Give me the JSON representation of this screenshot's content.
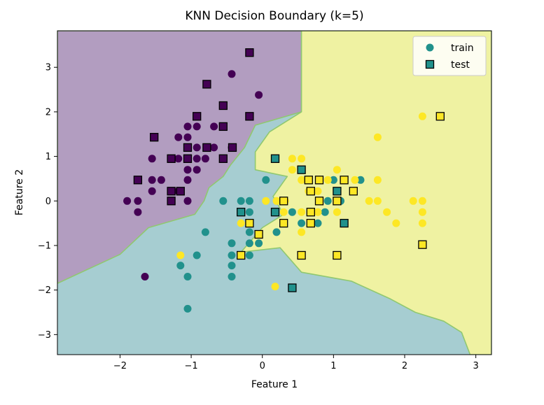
{
  "chart_data": {
    "type": "scatter",
    "title": "KNN Decision Boundary (k=5)",
    "xlabel": "Feature 1",
    "ylabel": "Feature 2",
    "xlim": [
      -2.88,
      3.22
    ],
    "ylim": [
      -3.45,
      3.82
    ],
    "xticks": [
      -2,
      -1,
      0,
      1,
      2,
      3
    ],
    "yticks": [
      -3,
      -2,
      -1,
      0,
      1,
      2,
      3
    ],
    "legend": {
      "placement": "top-right",
      "entries": [
        "train",
        "test"
      ]
    },
    "class_colors": [
      "#440154",
      "#21918c",
      "#fde725"
    ],
    "region_colors": [
      "#b29dc0",
      "#a6cdd1",
      "#eff2a2"
    ],
    "boundary_color": "#90c870",
    "regions": [
      {
        "class": 0,
        "polygon": [
          [
            -2.88,
            3.82
          ],
          [
            0.55,
            3.82
          ],
          [
            0.55,
            2.0
          ],
          [
            -0.1,
            1.7
          ],
          [
            -0.25,
            1.2
          ],
          [
            -0.45,
            0.8
          ],
          [
            -0.55,
            0.55
          ],
          [
            -0.75,
            0.3
          ],
          [
            -0.82,
            0.0
          ],
          [
            -0.95,
            -0.3
          ],
          [
            -1.6,
            -0.6
          ],
          [
            -2.0,
            -1.2
          ],
          [
            -2.88,
            -1.85
          ]
        ]
      },
      {
        "class": 2,
        "polygon": [
          [
            0.55,
            3.82
          ],
          [
            3.22,
            3.82
          ],
          [
            3.22,
            -3.45
          ],
          [
            2.92,
            -3.45
          ],
          [
            2.8,
            -2.95
          ],
          [
            2.55,
            -2.7
          ],
          [
            2.15,
            -2.5
          ],
          [
            1.8,
            -2.2
          ],
          [
            1.25,
            -1.8
          ],
          [
            0.55,
            -1.6
          ],
          [
            0.25,
            -1.05
          ],
          [
            -0.3,
            -1.15
          ],
          [
            0.0,
            -0.6
          ],
          [
            0.3,
            -0.3
          ],
          [
            0.15,
            0.1
          ],
          [
            0.35,
            0.55
          ],
          [
            -0.1,
            0.7
          ],
          [
            -0.1,
            1.1
          ],
          [
            0.1,
            1.55
          ],
          [
            0.55,
            2.0
          ]
        ]
      }
    ],
    "train": [
      {
        "x": -1.9,
        "y": 0.0,
        "c": 0
      },
      {
        "x": -1.75,
        "y": 0.0,
        "c": 0
      },
      {
        "x": -1.75,
        "y": -0.25,
        "c": 0
      },
      {
        "x": -1.55,
        "y": 0.47,
        "c": 0
      },
      {
        "x": -1.55,
        "y": 0.95,
        "c": 0
      },
      {
        "x": -1.55,
        "y": 0.22,
        "c": 0
      },
      {
        "x": -1.42,
        "y": 0.47,
        "c": 0
      },
      {
        "x": -1.28,
        "y": 0.0,
        "c": 0
      },
      {
        "x": -1.18,
        "y": 0.22,
        "c": 0
      },
      {
        "x": -1.18,
        "y": 0.95,
        "c": 0
      },
      {
        "x": -1.18,
        "y": 1.43,
        "c": 0
      },
      {
        "x": -1.05,
        "y": 0.0,
        "c": 0
      },
      {
        "x": -1.05,
        "y": 0.47,
        "c": 0
      },
      {
        "x": -1.05,
        "y": 0.7,
        "c": 0
      },
      {
        "x": -1.05,
        "y": 1.2,
        "c": 0
      },
      {
        "x": -1.05,
        "y": 1.43,
        "c": 0
      },
      {
        "x": -1.05,
        "y": 1.67,
        "c": 0
      },
      {
        "x": -0.92,
        "y": 0.7,
        "c": 0
      },
      {
        "x": -0.92,
        "y": 0.95,
        "c": 0
      },
      {
        "x": -0.92,
        "y": 1.2,
        "c": 0
      },
      {
        "x": -0.92,
        "y": 1.67,
        "c": 0
      },
      {
        "x": -0.92,
        "y": 1.9,
        "c": 0
      },
      {
        "x": -0.8,
        "y": 0.95,
        "c": 0
      },
      {
        "x": -0.68,
        "y": 1.2,
        "c": 0
      },
      {
        "x": -0.68,
        "y": 1.67,
        "c": 0
      },
      {
        "x": -0.55,
        "y": 0.95,
        "c": 0
      },
      {
        "x": -0.55,
        "y": 2.14,
        "c": 0
      },
      {
        "x": -0.43,
        "y": 1.2,
        "c": 0
      },
      {
        "x": -0.43,
        "y": 2.85,
        "c": 0
      },
      {
        "x": -0.05,
        "y": 2.38,
        "c": 0
      },
      {
        "x": -1.65,
        "y": -1.7,
        "c": 0
      },
      {
        "x": -1.15,
        "y": -1.45,
        "c": 1
      },
      {
        "x": -1.05,
        "y": -1.7,
        "c": 1
      },
      {
        "x": -1.05,
        "y": -2.42,
        "c": 1
      },
      {
        "x": -0.92,
        "y": -1.22,
        "c": 1
      },
      {
        "x": -0.8,
        "y": -0.7,
        "c": 1
      },
      {
        "x": -0.55,
        "y": 0.0,
        "c": 1
      },
      {
        "x": -0.43,
        "y": -0.95,
        "c": 1
      },
      {
        "x": -0.43,
        "y": -1.22,
        "c": 1
      },
      {
        "x": -0.43,
        "y": -1.45,
        "c": 1
      },
      {
        "x": -0.43,
        "y": -1.7,
        "c": 1
      },
      {
        "x": -0.3,
        "y": 0.0,
        "c": 1
      },
      {
        "x": -0.3,
        "y": -0.25,
        "c": 1
      },
      {
        "x": -0.18,
        "y": 0.0,
        "c": 1
      },
      {
        "x": -0.18,
        "y": -0.25,
        "c": 1
      },
      {
        "x": -0.18,
        "y": -0.7,
        "c": 1
      },
      {
        "x": -0.18,
        "y": -0.95,
        "c": 1
      },
      {
        "x": -0.18,
        "y": -1.22,
        "c": 1
      },
      {
        "x": -0.05,
        "y": -0.95,
        "c": 1
      },
      {
        "x": 0.05,
        "y": 0.47,
        "c": 1
      },
      {
        "x": 0.2,
        "y": -0.7,
        "c": 1
      },
      {
        "x": 0.42,
        "y": -0.25,
        "c": 1
      },
      {
        "x": 0.55,
        "y": -0.5,
        "c": 1
      },
      {
        "x": 0.78,
        "y": -0.5,
        "c": 1
      },
      {
        "x": 0.88,
        "y": -0.25,
        "c": 1
      },
      {
        "x": 0.92,
        "y": 0.0,
        "c": 1
      },
      {
        "x": 1.0,
        "y": 0.47,
        "c": 1
      },
      {
        "x": 1.1,
        "y": 0.0,
        "c": 1
      },
      {
        "x": 1.38,
        "y": 0.47,
        "c": 1
      },
      {
        "x": -1.15,
        "y": -1.22,
        "c": 2
      },
      {
        "x": -0.3,
        "y": -0.5,
        "c": 2
      },
      {
        "x": 0.05,
        "y": 0.0,
        "c": 2
      },
      {
        "x": 0.18,
        "y": -1.92,
        "c": 2
      },
      {
        "x": 0.2,
        "y": 0.0,
        "c": 2
      },
      {
        "x": 0.3,
        "y": -0.25,
        "c": 2
      },
      {
        "x": 0.32,
        "y": 0.0,
        "c": 2
      },
      {
        "x": 0.42,
        "y": 0.95,
        "c": 2
      },
      {
        "x": 0.42,
        "y": 0.7,
        "c": 2
      },
      {
        "x": 0.55,
        "y": 0.95,
        "c": 2
      },
      {
        "x": 0.55,
        "y": 0.47,
        "c": 2
      },
      {
        "x": 0.55,
        "y": -0.25,
        "c": 2
      },
      {
        "x": 0.55,
        "y": -0.7,
        "c": 2
      },
      {
        "x": 0.65,
        "y": 0.22,
        "c": 2
      },
      {
        "x": 0.78,
        "y": 0.22,
        "c": 2
      },
      {
        "x": 0.78,
        "y": -0.25,
        "c": 2
      },
      {
        "x": 0.92,
        "y": 0.47,
        "c": 2
      },
      {
        "x": 1.05,
        "y": 0.7,
        "c": 2
      },
      {
        "x": 1.05,
        "y": 0.22,
        "c": 2
      },
      {
        "x": 1.05,
        "y": -0.25,
        "c": 2
      },
      {
        "x": 1.3,
        "y": 0.47,
        "c": 2
      },
      {
        "x": 1.5,
        "y": 0.0,
        "c": 2
      },
      {
        "x": 1.62,
        "y": 1.43,
        "c": 2
      },
      {
        "x": 1.62,
        "y": 0.47,
        "c": 2
      },
      {
        "x": 1.62,
        "y": 0.0,
        "c": 2
      },
      {
        "x": 1.75,
        "y": -0.25,
        "c": 2
      },
      {
        "x": 1.88,
        "y": -0.5,
        "c": 2
      },
      {
        "x": 2.12,
        "y": 0.0,
        "c": 2
      },
      {
        "x": 2.25,
        "y": 1.9,
        "c": 2
      },
      {
        "x": 2.25,
        "y": 0.0,
        "c": 2
      },
      {
        "x": 2.25,
        "y": -0.25,
        "c": 2
      },
      {
        "x": 2.25,
        "y": -0.5,
        "c": 2
      }
    ],
    "test": [
      {
        "x": -0.18,
        "y": 3.33,
        "c": 0
      },
      {
        "x": -0.78,
        "y": 2.62,
        "c": 0
      },
      {
        "x": -0.55,
        "y": 2.14,
        "c": 0
      },
      {
        "x": -0.92,
        "y": 1.9,
        "c": 0
      },
      {
        "x": -0.18,
        "y": 1.9,
        "c": 0
      },
      {
        "x": -0.55,
        "y": 1.67,
        "c": 0
      },
      {
        "x": -1.52,
        "y": 1.43,
        "c": 0
      },
      {
        "x": -1.28,
        "y": 0.95,
        "c": 0
      },
      {
        "x": -1.05,
        "y": 0.95,
        "c": 0
      },
      {
        "x": -1.05,
        "y": 1.2,
        "c": 0
      },
      {
        "x": -0.78,
        "y": 1.2,
        "c": 0
      },
      {
        "x": -0.42,
        "y": 1.2,
        "c": 0
      },
      {
        "x": -0.55,
        "y": 0.95,
        "c": 0
      },
      {
        "x": -1.75,
        "y": 0.47,
        "c": 0
      },
      {
        "x": -1.28,
        "y": 0.22,
        "c": 0
      },
      {
        "x": -1.15,
        "y": 0.22,
        "c": 0
      },
      {
        "x": -1.28,
        "y": 0.0,
        "c": 0
      },
      {
        "x": 0.18,
        "y": 0.95,
        "c": 1
      },
      {
        "x": 0.55,
        "y": 0.7,
        "c": 1
      },
      {
        "x": 1.05,
        "y": 0.22,
        "c": 1
      },
      {
        "x": 1.15,
        "y": -0.5,
        "c": 1
      },
      {
        "x": -0.3,
        "y": -0.25,
        "c": 1
      },
      {
        "x": 0.18,
        "y": -0.25,
        "c": 1
      },
      {
        "x": 0.42,
        "y": -1.95,
        "c": 1
      },
      {
        "x": 0.65,
        "y": 0.47,
        "c": 2
      },
      {
        "x": 0.8,
        "y": 0.47,
        "c": 2
      },
      {
        "x": 0.68,
        "y": 0.22,
        "c": 2
      },
      {
        "x": 1.15,
        "y": 0.47,
        "c": 2
      },
      {
        "x": 1.28,
        "y": 0.22,
        "c": 2
      },
      {
        "x": 0.3,
        "y": 0.0,
        "c": 2
      },
      {
        "x": 0.8,
        "y": 0.0,
        "c": 2
      },
      {
        "x": 1.05,
        "y": 0.0,
        "c": 2
      },
      {
        "x": 0.68,
        "y": -0.25,
        "c": 2
      },
      {
        "x": -0.18,
        "y": -0.5,
        "c": 2
      },
      {
        "x": 0.3,
        "y": -0.5,
        "c": 2
      },
      {
        "x": 0.68,
        "y": -0.5,
        "c": 2
      },
      {
        "x": -0.05,
        "y": -0.75,
        "c": 2
      },
      {
        "x": -0.3,
        "y": -1.22,
        "c": 2
      },
      {
        "x": 0.55,
        "y": -1.22,
        "c": 2
      },
      {
        "x": 1.05,
        "y": -1.22,
        "c": 2
      },
      {
        "x": 2.25,
        "y": -0.98,
        "c": 2
      },
      {
        "x": 2.5,
        "y": 1.9,
        "c": 2
      }
    ]
  }
}
